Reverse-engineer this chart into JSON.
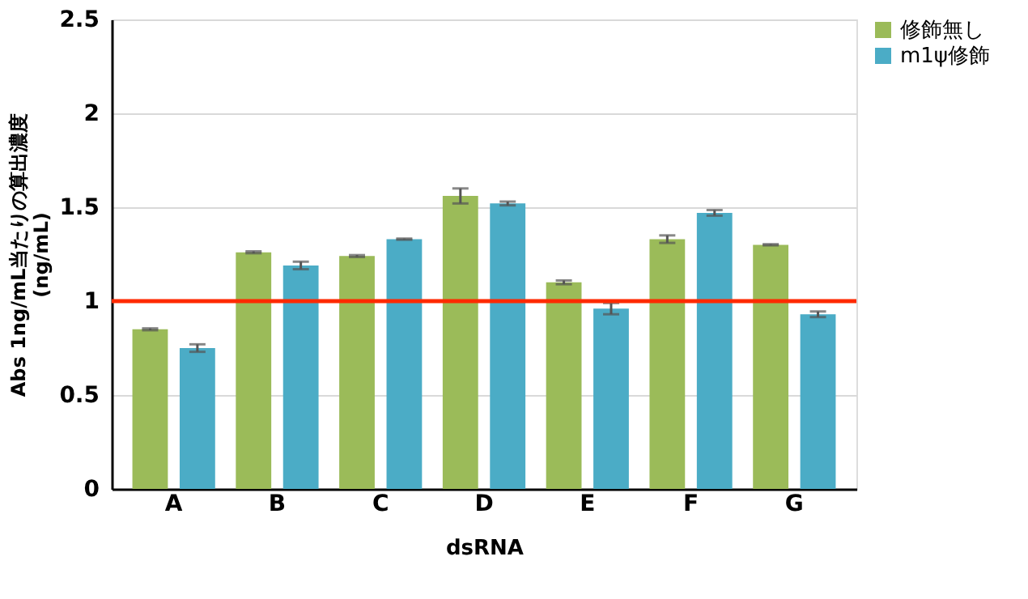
{
  "chart_data": {
    "type": "bar",
    "xlabel": "dsRNA",
    "ylabel": "Abs 1ng/mL当たりの算出濃度\n(ng/mL)",
    "categories": [
      "A",
      "B",
      "C",
      "D",
      "E",
      "F",
      "G"
    ],
    "series": [
      {
        "name": "修飾無し",
        "color": "#9bbb59",
        "values": [
          0.85,
          1.26,
          1.24,
          1.56,
          1.1,
          1.33,
          1.3
        ],
        "errors": [
          0.005,
          0.005,
          0.005,
          0.04,
          0.01,
          0.02,
          0.003
        ]
      },
      {
        "name": "m1ψ修飾",
        "color": "#4bacc6",
        "values": [
          0.75,
          1.19,
          1.33,
          1.52,
          0.96,
          1.47,
          0.93
        ],
        "errors": [
          0.02,
          0.02,
          0.003,
          0.01,
          0.03,
          0.015,
          0.015
        ]
      }
    ],
    "ylim": [
      0,
      2.5
    ],
    "yticks": [
      0,
      0.5,
      1,
      1.5,
      2,
      2.5
    ],
    "grid": "y",
    "legend": "right",
    "ref_lines": [
      {
        "axis": "y",
        "value": 1,
        "color": "#ff2a00"
      }
    ]
  }
}
